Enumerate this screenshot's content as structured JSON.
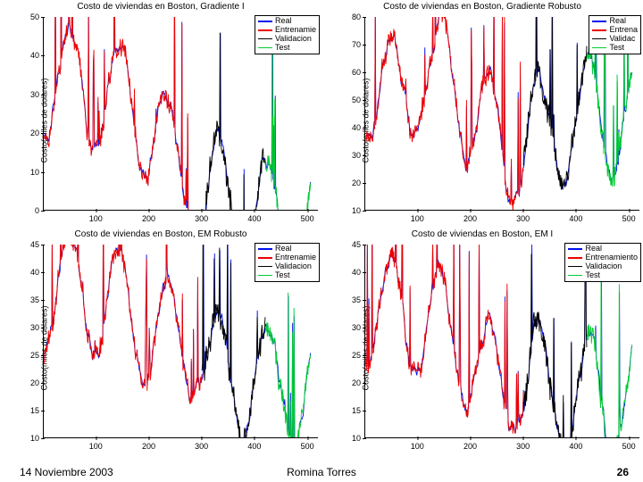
{
  "footer": {
    "date": "14 Noviembre 2003",
    "author": "Romina Torres",
    "page": "26"
  },
  "globals": {
    "ylabel": "Costo(miles de dolares)",
    "xmin": 0,
    "xmax": 520,
    "xticks": [
      100,
      200,
      300,
      400,
      500
    ],
    "colors": {
      "real": "#0011ee",
      "train": "#ee0000",
      "valid": "#000000",
      "test": "#00cc33"
    },
    "legend_labels": {
      "real": "Real",
      "train_short": "Entrenamie",
      "train_full": "Entrenamiento",
      "train_crop": "Entrena",
      "valid": "Validacion",
      "valid_crop": "Validac",
      "test": "Test"
    }
  },
  "panels": [
    {
      "id": "p0",
      "title": "Costo de viviendas en Boston, Gradiente I",
      "ymin": 0,
      "ymax": 50,
      "yticks": [
        0,
        10,
        20,
        30,
        40,
        50
      ],
      "legend": [
        "real",
        "train_short",
        "valid",
        "test"
      ]
    },
    {
      "id": "p1",
      "title": "Costo de viviendas en Boston, Gradiente Robusto",
      "ymin": 10,
      "ymax": 80,
      "yticks": [
        10,
        20,
        30,
        40,
        50,
        60,
        70,
        80
      ],
      "legend": [
        "real",
        "train_crop",
        "valid_crop",
        "test"
      ]
    },
    {
      "id": "p2",
      "title": "Costo de viviendas en Boston, EM Robusto",
      "ymin": 10,
      "ymax": 45,
      "yticks": [
        10,
        15,
        20,
        25,
        30,
        35,
        40,
        45
      ],
      "legend": [
        "real",
        "train_short",
        "valid",
        "test"
      ]
    },
    {
      "id": "p3",
      "title": "Costo de viviendas en Boston, EM I",
      "ymin": 10,
      "ymax": 45,
      "yticks": [
        10,
        15,
        20,
        25,
        30,
        35,
        40,
        45
      ],
      "legend": [
        "real",
        "train_full",
        "valid",
        "test"
      ]
    }
  ]
}
